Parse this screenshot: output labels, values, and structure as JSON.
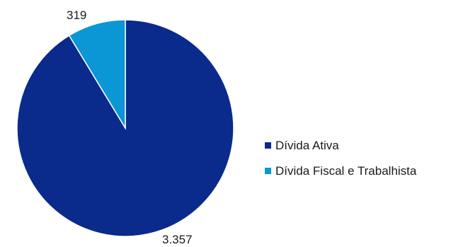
{
  "chart_data": {
    "type": "pie",
    "categories": [
      "Dívida Ativa",
      "Dívida Fiscal e Trabalhista"
    ],
    "values": [
      3357,
      319
    ],
    "value_labels": [
      "3.357",
      "319"
    ],
    "colors": [
      "#0a2a8c",
      "#0b96d6"
    ],
    "legend_position": "right",
    "title": ""
  }
}
